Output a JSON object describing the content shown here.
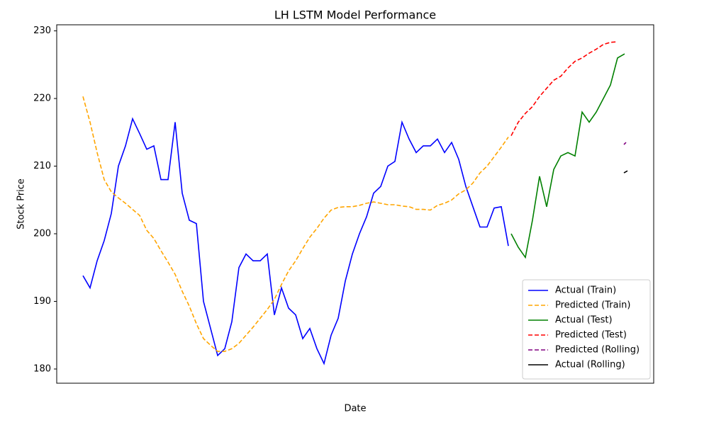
{
  "chart_data": {
    "type": "line",
    "title": "LH LSTM Model Performance",
    "x_label": "Date",
    "y_label": "Stock Price",
    "xlim": [
      -3.7,
      80.5
    ],
    "ylim": [
      177.9,
      230.9
    ],
    "yticks": [
      180,
      190,
      200,
      210,
      220,
      230
    ],
    "legend": "lower right",
    "series": [
      {
        "name": "Actual (Train)",
        "color": "#0000ff",
        "linestyle": "solid",
        "x": [
          0,
          1,
          2,
          3,
          4,
          5,
          6,
          7,
          8,
          9,
          10,
          11,
          12,
          13,
          14,
          15,
          16,
          17,
          18,
          19,
          20,
          21,
          22,
          23,
          24,
          25,
          26,
          27,
          28,
          29,
          30,
          31,
          32,
          33,
          34,
          35,
          36,
          37,
          38,
          39,
          40,
          41,
          42,
          43,
          44,
          45,
          46,
          47,
          48,
          49,
          50,
          51,
          52,
          53,
          54,
          55,
          56,
          57,
          58,
          59,
          60
        ],
        "values": [
          193.8,
          192,
          196,
          199,
          203,
          210,
          213,
          217,
          214.8,
          212.5,
          213,
          208,
          208,
          216.5,
          206,
          202,
          201.5,
          190,
          186,
          182,
          183,
          187,
          195,
          197,
          196,
          196,
          197,
          188,
          192,
          189,
          188,
          184.5,
          186,
          183,
          180.8,
          185,
          187.5,
          193,
          197,
          200,
          202.5,
          206,
          207,
          210,
          210.7,
          216.5,
          214,
          212,
          213,
          213,
          214,
          212,
          213.5,
          211,
          207,
          204,
          201,
          201,
          203.8,
          204,
          198.2
        ]
      },
      {
        "name": "Predicted (Train)",
        "color": "orange",
        "linestyle": "dashed",
        "x": [
          0,
          1,
          2,
          3,
          4,
          5,
          6,
          7,
          8,
          9,
          10,
          11,
          12,
          13,
          14,
          15,
          16,
          17,
          18,
          19,
          20,
          21,
          22,
          23,
          24,
          25,
          26,
          27,
          28,
          29,
          30,
          31,
          32,
          33,
          34,
          35,
          36,
          37,
          38,
          39,
          40,
          41,
          42,
          43,
          44,
          45,
          46,
          47,
          48,
          49,
          50,
          51,
          52,
          53,
          54,
          55,
          56,
          57,
          58,
          59,
          60
        ],
        "values": [
          220.3,
          216.5,
          212,
          208,
          206.2,
          205.3,
          204.5,
          203.6,
          202.7,
          200.5,
          199.3,
          197.5,
          195.8,
          194,
          191.5,
          189.3,
          186.7,
          184.5,
          183.5,
          182.6,
          182.6,
          183,
          183.8,
          185,
          186.2,
          187.5,
          188.8,
          190.3,
          192.5,
          194.5,
          196,
          197.8,
          199.5,
          200.8,
          202.3,
          203.5,
          203.9,
          204,
          204,
          204.2,
          204.5,
          204.7,
          204.5,
          204.3,
          204.3,
          204.1,
          204,
          203.6,
          203.6,
          203.5,
          204.2,
          204.5,
          205,
          205.9,
          206.5,
          207.5,
          209,
          210,
          211.4,
          212.8,
          214.3
        ]
      },
      {
        "name": "Actual (Test)",
        "color": "green",
        "linestyle": "solid",
        "x": [
          60.4,
          61.4,
          62.4,
          63.4,
          64.4,
          65.4,
          66.4,
          67.4,
          68.4,
          69.4,
          70.4,
          71.4,
          72.4,
          73.4,
          74.4,
          75.4,
          76.4
        ],
        "values": [
          200,
          198,
          196.5,
          202,
          208.5,
          204,
          209.5,
          211.5,
          212,
          211.5,
          218,
          216.5,
          218,
          220,
          222,
          226,
          226.6
        ]
      },
      {
        "name": "Predicted (Test)",
        "color": "red",
        "linestyle": "dashed",
        "x": [
          60.4,
          61.4,
          62.4,
          63.4,
          64.4,
          65.4,
          66.4,
          67.4,
          68.4,
          69.4,
          70.4,
          71.4,
          72.4,
          73.4,
          74.4,
          75.4
        ],
        "values": [
          214.5,
          216.5,
          217.8,
          218.8,
          220.3,
          221.5,
          222.7,
          223.3,
          224.5,
          225.5,
          226,
          226.7,
          227.3,
          228,
          228.3,
          228.4
        ]
      },
      {
        "name": "Predicted (Rolling)",
        "color": "purple",
        "linestyle": "dashed",
        "x": [
          76.3,
          76.6
        ],
        "values": [
          213.2,
          213.5
        ]
      },
      {
        "name": "Actual (Rolling)",
        "color": "black",
        "linestyle": "solid",
        "x": [
          76.3,
          76.8
        ],
        "values": [
          209,
          209.3
        ]
      }
    ]
  }
}
